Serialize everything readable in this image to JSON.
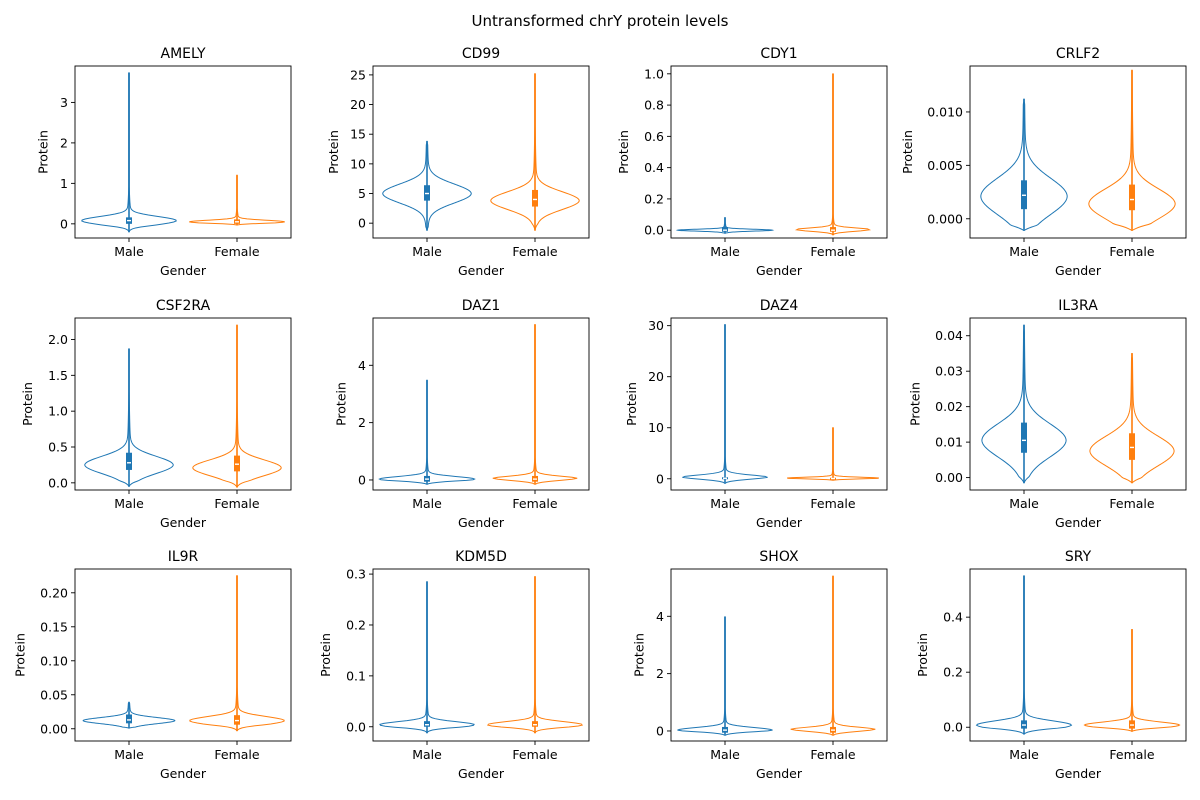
{
  "figure": {
    "suptitle": "Untransformed chrY protein levels"
  },
  "colors": {
    "male": "#1f77b4",
    "female": "#ff7f0e",
    "axis": "#000000"
  },
  "chart_data": [
    {
      "type": "violin",
      "title": "AMELY",
      "xlabel": "Gender",
      "ylabel": "Protein",
      "categories": [
        "Male",
        "Female"
      ],
      "ylim": [
        -0.35,
        3.9
      ],
      "yticks": [
        0,
        1,
        2,
        3
      ],
      "yticklabels": [
        "0",
        "1",
        "2",
        "3"
      ],
      "series": [
        {
          "category": "Male",
          "min": -0.2,
          "max": 3.73,
          "q1": 0.0,
          "median": 0.08,
          "q3": 0.16,
          "bulk_center": 0.08,
          "bulk_halfwidth": 0.88,
          "bulk_spread": 0.1
        },
        {
          "category": "Female",
          "min": -0.03,
          "max": 1.2,
          "q1": 0.0,
          "median": 0.05,
          "q3": 0.11,
          "bulk_center": 0.05,
          "bulk_halfwidth": 0.88,
          "bulk_spread": 0.04
        }
      ]
    },
    {
      "type": "violin",
      "title": "CD99",
      "xlabel": "Gender",
      "ylabel": "Protein",
      "categories": [
        "Male",
        "Female"
      ],
      "ylim": [
        -2.5,
        26.5
      ],
      "yticks": [
        0,
        5,
        10,
        15,
        20,
        25
      ],
      "yticklabels": [
        "0",
        "5",
        "10",
        "15",
        "20",
        "25"
      ],
      "series": [
        {
          "category": "Male",
          "min": -1.2,
          "max": 13.8,
          "q1": 3.8,
          "median": 5.0,
          "q3": 6.4,
          "bulk_center": 5.0,
          "bulk_halfwidth": 0.82,
          "bulk_spread": 1.6
        },
        {
          "category": "Female",
          "min": -1.2,
          "max": 25.2,
          "q1": 2.8,
          "median": 4.0,
          "q3": 5.6,
          "bulk_center": 3.8,
          "bulk_halfwidth": 0.82,
          "bulk_spread": 1.5
        }
      ]
    },
    {
      "type": "violin",
      "title": "CDY1",
      "xlabel": "Gender",
      "ylabel": "Protein",
      "categories": [
        "Male",
        "Female"
      ],
      "ylim": [
        -0.05,
        1.05
      ],
      "yticks": [
        0,
        0.2,
        0.4,
        0.6,
        0.8,
        1.0
      ],
      "yticklabels": [
        "0.0",
        "0.2",
        "0.4",
        "0.6",
        "0.8",
        "1.0"
      ],
      "series": [
        {
          "category": "Male",
          "min": -0.02,
          "max": 0.08,
          "q1": -0.01,
          "median": 0.0,
          "q3": 0.02,
          "bulk_center": 0.0,
          "bulk_halfwidth": 0.88,
          "bulk_spread": 0.006
        },
        {
          "category": "Female",
          "min": -0.03,
          "max": 1.0,
          "q1": -0.01,
          "median": 0.0,
          "q3": 0.02,
          "bulk_center": 0.0,
          "bulk_halfwidth": 0.88,
          "bulk_spread": 0.012
        }
      ]
    },
    {
      "type": "violin",
      "title": "CRLF2",
      "xlabel": "Gender",
      "ylabel": "Protein",
      "categories": [
        "Male",
        "Female"
      ],
      "ylim": [
        -0.0018,
        0.0143
      ],
      "yticks": [
        0,
        0.005,
        0.01
      ],
      "yticklabels": [
        "0.000",
        "0.005",
        "0.010"
      ],
      "series": [
        {
          "category": "Male",
          "min": -0.0011,
          "max": 0.0112,
          "q1": 0.0009,
          "median": 0.0022,
          "q3": 0.0036,
          "bulk_center": 0.0021,
          "bulk_halfwidth": 0.8,
          "bulk_spread": 0.0017
        },
        {
          "category": "Female",
          "min": -0.0011,
          "max": 0.0139,
          "q1": 0.0008,
          "median": 0.0018,
          "q3": 0.0032,
          "bulk_center": 0.0014,
          "bulk_halfwidth": 0.8,
          "bulk_spread": 0.0014
        }
      ]
    },
    {
      "type": "violin",
      "title": "CSF2RA",
      "xlabel": "Gender",
      "ylabel": "Protein",
      "categories": [
        "Male",
        "Female"
      ],
      "ylim": [
        -0.1,
        2.3
      ],
      "yticks": [
        0,
        0.5,
        1.0,
        1.5,
        2.0
      ],
      "yticklabels": [
        "0.0",
        "0.5",
        "1.0",
        "1.5",
        "2.0"
      ],
      "series": [
        {
          "category": "Male",
          "min": -0.05,
          "max": 1.87,
          "q1": 0.18,
          "median": 0.28,
          "q3": 0.42,
          "bulk_center": 0.25,
          "bulk_halfwidth": 0.82,
          "bulk_spread": 0.12
        },
        {
          "category": "Female",
          "min": -0.06,
          "max": 2.2,
          "q1": 0.16,
          "median": 0.26,
          "q3": 0.38,
          "bulk_center": 0.21,
          "bulk_halfwidth": 0.82,
          "bulk_spread": 0.11
        }
      ]
    },
    {
      "type": "violin",
      "title": "DAZ1",
      "xlabel": "Gender",
      "ylabel": "Protein",
      "categories": [
        "Male",
        "Female"
      ],
      "ylim": [
        -0.35,
        5.65
      ],
      "yticks": [
        0,
        2,
        4
      ],
      "yticklabels": [
        "0",
        "2",
        "4"
      ],
      "series": [
        {
          "category": "Male",
          "min": -0.15,
          "max": 3.48,
          "q1": -0.06,
          "median": 0.03,
          "q3": 0.14,
          "bulk_center": 0.03,
          "bulk_halfwidth": 0.88,
          "bulk_spread": 0.09
        },
        {
          "category": "Female",
          "min": -0.15,
          "max": 5.42,
          "q1": -0.06,
          "median": 0.03,
          "q3": 0.14,
          "bulk_center": 0.03,
          "bulk_halfwidth": 0.88,
          "bulk_spread": 0.09
        }
      ]
    },
    {
      "type": "violin",
      "title": "DAZ4",
      "xlabel": "Gender",
      "ylabel": "Protein",
      "categories": [
        "Male",
        "Female"
      ],
      "ylim": [
        -2.2,
        31.5
      ],
      "yticks": [
        0,
        10,
        20,
        30
      ],
      "yticklabels": [
        "0",
        "10",
        "20",
        "30"
      ],
      "series": [
        {
          "category": "Male",
          "min": -0.9,
          "max": 30.2,
          "q1": 0.0,
          "median": 0.1,
          "q3": 0.3,
          "bulk_center": 0.2,
          "bulk_halfwidth": 0.85,
          "bulk_spread": 0.5
        },
        {
          "category": "Female",
          "min": -0.3,
          "max": 10.0,
          "q1": 0.0,
          "median": 0.05,
          "q3": 0.2,
          "bulk_center": 0.1,
          "bulk_halfwidth": 0.88,
          "bulk_spread": 0.2
        }
      ]
    },
    {
      "type": "violin",
      "title": "IL3RA",
      "xlabel": "Gender",
      "ylabel": "Protein",
      "categories": [
        "Male",
        "Female"
      ],
      "ylim": [
        -0.0035,
        0.045
      ],
      "yticks": [
        0,
        0.01,
        0.02,
        0.03,
        0.04
      ],
      "yticklabels": [
        "0.00",
        "0.01",
        "0.02",
        "0.03",
        "0.04"
      ],
      "series": [
        {
          "category": "Male",
          "min": -0.0015,
          "max": 0.043,
          "q1": 0.007,
          "median": 0.0105,
          "q3": 0.0155,
          "bulk_center": 0.0105,
          "bulk_halfwidth": 0.78,
          "bulk_spread": 0.0047
        },
        {
          "category": "Female",
          "min": -0.0015,
          "max": 0.035,
          "q1": 0.005,
          "median": 0.0085,
          "q3": 0.0125,
          "bulk_center": 0.0075,
          "bulk_halfwidth": 0.78,
          "bulk_spread": 0.0042
        }
      ]
    },
    {
      "type": "violin",
      "title": "IL9R",
      "xlabel": "Gender",
      "ylabel": "Protein",
      "categories": [
        "Male",
        "Female"
      ],
      "ylim": [
        -0.018,
        0.235
      ],
      "yticks": [
        0,
        0.05,
        0.1,
        0.15,
        0.2
      ],
      "yticklabels": [
        "0.00",
        "0.05",
        "0.10",
        "0.15",
        "0.20"
      ],
      "series": [
        {
          "category": "Male",
          "min": 0.001,
          "max": 0.039,
          "q1": 0.008,
          "median": 0.013,
          "q3": 0.021,
          "bulk_center": 0.012,
          "bulk_halfwidth": 0.85,
          "bulk_spread": 0.0045
        },
        {
          "category": "Female",
          "min": -0.003,
          "max": 0.225,
          "q1": 0.006,
          "median": 0.012,
          "q3": 0.02,
          "bulk_center": 0.012,
          "bulk_halfwidth": 0.88,
          "bulk_spread": 0.006
        }
      ]
    },
    {
      "type": "violin",
      "title": "KDM5D",
      "xlabel": "Gender",
      "ylabel": "Protein",
      "categories": [
        "Male",
        "Female"
      ],
      "ylim": [
        -0.028,
        0.31
      ],
      "yticks": [
        0,
        0.1,
        0.2,
        0.3
      ],
      "yticklabels": [
        "0.0",
        "0.1",
        "0.2",
        "0.3"
      ],
      "series": [
        {
          "category": "Male",
          "min": -0.012,
          "max": 0.285,
          "q1": 0.0,
          "median": 0.004,
          "q3": 0.011,
          "bulk_center": 0.004,
          "bulk_halfwidth": 0.88,
          "bulk_spread": 0.006
        },
        {
          "category": "Female",
          "min": -0.012,
          "max": 0.295,
          "q1": 0.0,
          "median": 0.004,
          "q3": 0.011,
          "bulk_center": 0.004,
          "bulk_halfwidth": 0.88,
          "bulk_spread": 0.006
        }
      ]
    },
    {
      "type": "violin",
      "title": "SHOX",
      "xlabel": "Gender",
      "ylabel": "Protein",
      "categories": [
        "Male",
        "Female"
      ],
      "ylim": [
        -0.35,
        5.65
      ],
      "yticks": [
        0,
        2,
        4
      ],
      "yticklabels": [
        "0",
        "2",
        "4"
      ],
      "series": [
        {
          "category": "Male",
          "min": -0.15,
          "max": 3.98,
          "q1": -0.06,
          "median": 0.03,
          "q3": 0.14,
          "bulk_center": 0.03,
          "bulk_halfwidth": 0.88,
          "bulk_spread": 0.09
        },
        {
          "category": "Female",
          "min": -0.15,
          "max": 5.4,
          "q1": -0.06,
          "median": 0.03,
          "q3": 0.14,
          "bulk_center": 0.03,
          "bulk_halfwidth": 0.88,
          "bulk_spread": 0.09
        }
      ]
    },
    {
      "type": "violin",
      "title": "SRY",
      "xlabel": "Gender",
      "ylabel": "Protein",
      "categories": [
        "Male",
        "Female"
      ],
      "ylim": [
        -0.05,
        0.575
      ],
      "yticks": [
        0,
        0.2,
        0.4
      ],
      "yticklabels": [
        "0.0",
        "0.2",
        "0.4"
      ],
      "series": [
        {
          "category": "Male",
          "min": -0.025,
          "max": 0.55,
          "q1": -0.005,
          "median": 0.008,
          "q3": 0.025,
          "bulk_center": 0.008,
          "bulk_halfwidth": 0.88,
          "bulk_spread": 0.015
        },
        {
          "category": "Female",
          "min": -0.015,
          "max": 0.355,
          "q1": -0.005,
          "median": 0.008,
          "q3": 0.025,
          "bulk_center": 0.008,
          "bulk_halfwidth": 0.88,
          "bulk_spread": 0.011
        }
      ]
    }
  ]
}
